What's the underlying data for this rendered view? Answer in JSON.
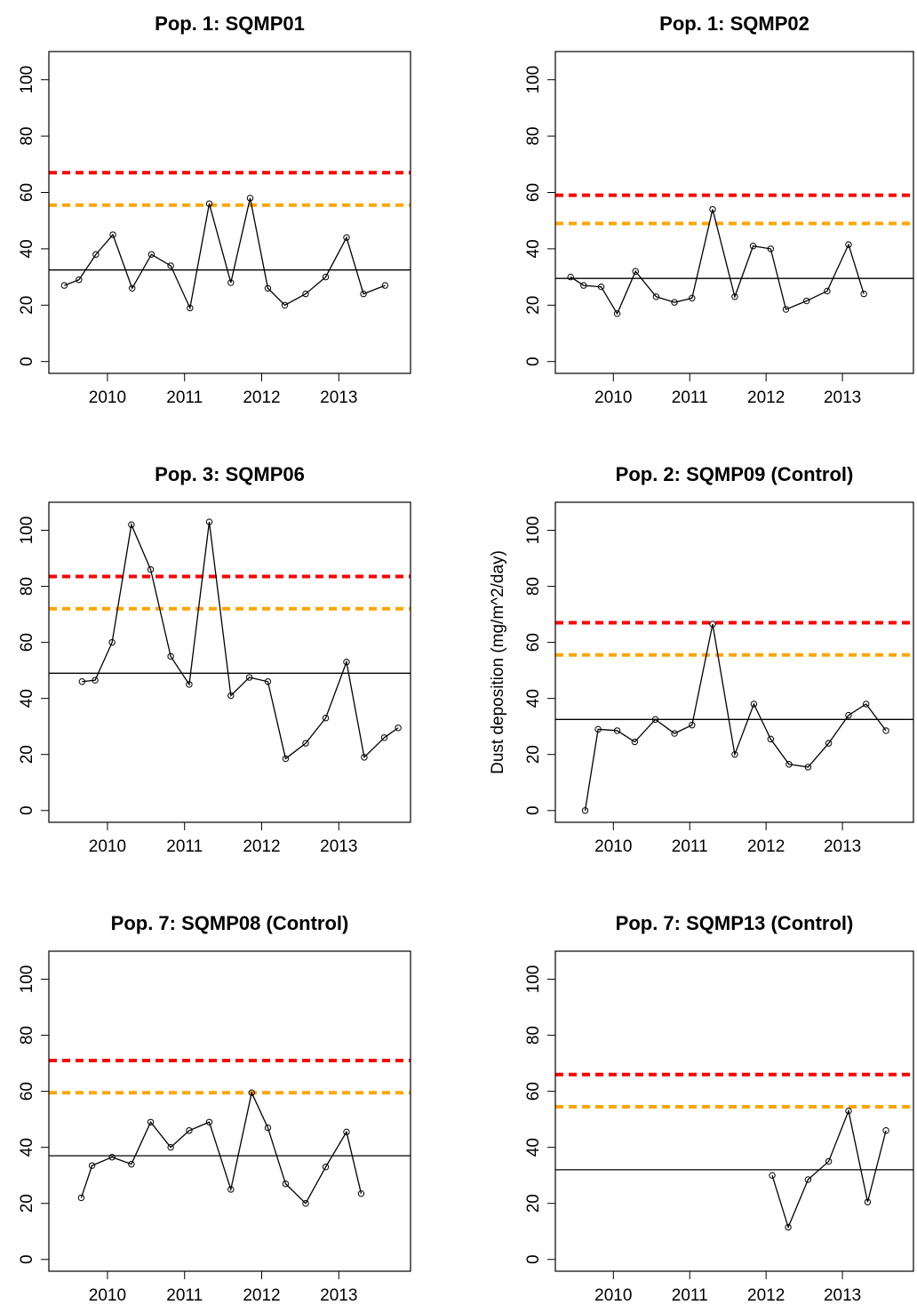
{
  "chart_data": [
    {
      "type": "line",
      "title": "Pop. 1: SQMP01",
      "x": [
        2009.44,
        2009.63,
        2009.85,
        2010.07,
        2010.32,
        2010.57,
        2010.82,
        2011.07,
        2011.32,
        2011.6,
        2011.85,
        2012.08,
        2012.3,
        2012.57,
        2012.83,
        2013.1,
        2013.32,
        2013.6
      ],
      "values": [
        27,
        29,
        38,
        45,
        26,
        38,
        34,
        19,
        56,
        28,
        58,
        26,
        20,
        24,
        30,
        44,
        24,
        27
      ],
      "color": "#000000",
      "hlines": [
        {
          "value": 32.5,
          "color": "#000000",
          "dashed": false
        },
        {
          "value": 55.5,
          "color": "#ffa500",
          "dashed": true
        },
        {
          "value": 67,
          "color": "#ff0000",
          "dashed": true
        }
      ],
      "xlim": [
        2009.24,
        2013.93
      ],
      "xticks": [
        2010,
        2011,
        2012,
        2013
      ],
      "ylim": [
        -4.2,
        110
      ],
      "yticks": [
        0,
        20,
        40,
        60,
        80,
        100
      ]
    },
    {
      "type": "line",
      "title": "Pop. 1: SQMP02",
      "x": [
        2009.44,
        2009.61,
        2009.84,
        2010.05,
        2010.29,
        2010.56,
        2010.8,
        2011.03,
        2011.3,
        2011.59,
        2011.83,
        2012.06,
        2012.26,
        2012.53,
        2012.8,
        2013.08,
        2013.28
      ],
      "values": [
        30,
        27,
        26.5,
        17,
        32,
        23,
        21,
        22.5,
        54,
        23,
        41,
        40,
        18.5,
        21.5,
        25,
        41.5,
        24
      ],
      "color": "#000000",
      "hlines": [
        {
          "value": 29.5,
          "color": "#000000",
          "dashed": false
        },
        {
          "value": 49,
          "color": "#ffa500",
          "dashed": true
        },
        {
          "value": 59,
          "color": "#ff0000",
          "dashed": true
        }
      ],
      "xlim": [
        2009.24,
        2013.93
      ],
      "xticks": [
        2010,
        2011,
        2012,
        2013
      ],
      "ylim": [
        -4.2,
        110
      ],
      "yticks": [
        0,
        20,
        40,
        60,
        80,
        100
      ]
    },
    {
      "type": "line",
      "title": "Pop. 3: SQMP06",
      "x": [
        2009.67,
        2009.84,
        2010.06,
        2010.31,
        2010.56,
        2010.82,
        2011.06,
        2011.32,
        2011.6,
        2011.84,
        2012.08,
        2012.31,
        2012.57,
        2012.83,
        2013.1,
        2013.33,
        2013.59,
        2013.77
      ],
      "values": [
        46,
        46.5,
        60,
        102,
        86,
        55,
        45,
        103,
        41,
        47.5,
        46,
        18.5,
        24,
        33,
        53,
        19,
        26,
        29.5
      ],
      "color": "#000000",
      "hlines": [
        {
          "value": 49,
          "color": "#000000",
          "dashed": false
        },
        {
          "value": 72,
          "color": "#ffa500",
          "dashed": true
        },
        {
          "value": 83.5,
          "color": "#ff0000",
          "dashed": true
        }
      ],
      "xlim": [
        2009.24,
        2013.93
      ],
      "xticks": [
        2010,
        2011,
        2012,
        2013
      ],
      "ylim": [
        -4.2,
        110
      ],
      "yticks": [
        0,
        20,
        40,
        60,
        80,
        100
      ]
    },
    {
      "type": "line",
      "title": "Pop. 2: SQMP09 (Control)",
      "ylabel": "Dust deposition (mg/m^2/day)",
      "x": [
        2009.63,
        2009.8,
        2010.05,
        2010.28,
        2010.55,
        2010.8,
        2011.03,
        2011.3,
        2011.59,
        2011.84,
        2012.06,
        2012.3,
        2012.55,
        2012.82,
        2013.08,
        2013.31,
        2013.57
      ],
      "values": [
        0,
        29,
        28.5,
        24.5,
        32.5,
        27.5,
        30.5,
        66.5,
        20,
        38,
        25.5,
        16.5,
        15.5,
        24,
        34,
        38,
        28.5
      ],
      "color": "#000000",
      "hlines": [
        {
          "value": 32.5,
          "color": "#000000",
          "dashed": false
        },
        {
          "value": 55.5,
          "color": "#ffa500",
          "dashed": true
        },
        {
          "value": 67,
          "color": "#ff0000",
          "dashed": true
        }
      ],
      "xlim": [
        2009.24,
        2013.93
      ],
      "xticks": [
        2010,
        2011,
        2012,
        2013
      ],
      "ylim": [
        -4.2,
        110
      ],
      "yticks": [
        0,
        20,
        40,
        60,
        80,
        100
      ]
    },
    {
      "type": "line",
      "title": "Pop. 7: SQMP08 (Control)",
      "x": [
        2009.66,
        2009.8,
        2010.06,
        2010.31,
        2010.56,
        2010.82,
        2011.06,
        2011.32,
        2011.6,
        2011.87,
        2012.08,
        2012.31,
        2012.57,
        2012.83,
        2013.1,
        2013.29
      ],
      "values": [
        22,
        33.5,
        36.5,
        34,
        49,
        40,
        46,
        49,
        25,
        59.5,
        47,
        27,
        20,
        33,
        45.5,
        23.5
      ],
      "color": "#000000",
      "hlines": [
        {
          "value": 37,
          "color": "#000000",
          "dashed": false
        },
        {
          "value": 59.5,
          "color": "#ffa500",
          "dashed": true
        },
        {
          "value": 71,
          "color": "#ff0000",
          "dashed": true
        }
      ],
      "xlim": [
        2009.24,
        2013.93
      ],
      "xticks": [
        2010,
        2011,
        2012,
        2013
      ],
      "ylim": [
        -4.2,
        110
      ],
      "yticks": [
        0,
        20,
        40,
        60,
        80,
        100
      ]
    },
    {
      "type": "line",
      "title": "Pop. 7: SQMP13 (Control)",
      "x": [
        2012.08,
        2012.29,
        2012.55,
        2012.82,
        2013.08,
        2013.33,
        2013.57
      ],
      "values": [
        30,
        11.5,
        28.5,
        35,
        53,
        20.5,
        46
      ],
      "color": "#000000",
      "hlines": [
        {
          "value": 32,
          "color": "#000000",
          "dashed": false
        },
        {
          "value": 54.5,
          "color": "#ffa500",
          "dashed": true
        },
        {
          "value": 66,
          "color": "#ff0000",
          "dashed": true
        }
      ],
      "xlim": [
        2009.24,
        2013.93
      ],
      "xticks": [
        2010,
        2011,
        2012,
        2013
      ],
      "ylim": [
        -4.2,
        110
      ],
      "yticks": [
        0,
        20,
        40,
        60,
        80,
        100
      ]
    }
  ]
}
